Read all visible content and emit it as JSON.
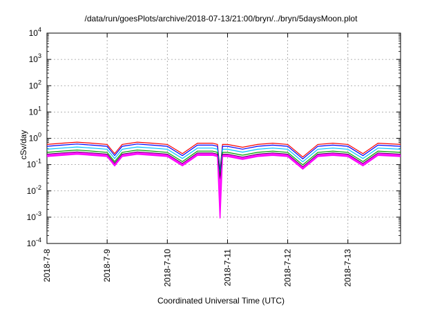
{
  "chart_data": {
    "type": "area",
    "title": "/data/run/goesPlots/archive/2018-07-13/21:00/bryn/../bryn/5daysMoon.plot",
    "xlabel": "Coordinated Universal Time (UTC)",
    "ylabel": "cSv/day",
    "x_ticks": [
      "2018-7-8",
      "2018-7-9",
      "2018-7-10",
      "2018-7-11",
      "2018-7-12",
      "2018-7-13"
    ],
    "x_range": [
      "2018-07-08T00:00",
      "2018-07-13T21:00"
    ],
    "y_scale": "log",
    "ylim": [
      0.0001,
      10000
    ],
    "y_ticks": [
      {
        "base": "10",
        "exp": "-4"
      },
      {
        "base": "10",
        "exp": "-3"
      },
      {
        "base": "10",
        "exp": "-2"
      },
      {
        "base": "10",
        "exp": "-1"
      },
      {
        "base": "10",
        "exp": "0"
      },
      {
        "base": "10",
        "exp": "1"
      },
      {
        "base": "10",
        "exp": "2"
      },
      {
        "base": "10",
        "exp": "3"
      },
      {
        "base": "10",
        "exp": "4"
      }
    ],
    "grid": true,
    "series_colors": [
      "#ff00ff",
      "#ff0000",
      "#0000ff",
      "#00c0ff",
      "#00a000",
      "#000000"
    ],
    "baseline": {
      "x": [
        "2018-07-08T00:00",
        "2018-07-08T06:00",
        "2018-07-08T12:00",
        "2018-07-08T18:00",
        "2018-07-09T00:00",
        "2018-07-09T03:00",
        "2018-07-09T06:00",
        "2018-07-09T12:00",
        "2018-07-09T18:00",
        "2018-07-10T00:00",
        "2018-07-10T06:00",
        "2018-07-10T12:00",
        "2018-07-10T18:00",
        "2018-07-10T20:00",
        "2018-07-10T21:00",
        "2018-07-10T22:00",
        "2018-07-11T00:00",
        "2018-07-11T06:00",
        "2018-07-11T12:00",
        "2018-07-11T18:00",
        "2018-07-12T00:00",
        "2018-07-12T06:00",
        "2018-07-12T12:00",
        "2018-07-12T18:00",
        "2018-07-13T00:00",
        "2018-07-13T06:00",
        "2018-07-13T12:00",
        "2018-07-13T21:00"
      ],
      "y": [
        0.45,
        0.5,
        0.55,
        0.5,
        0.45,
        0.2,
        0.45,
        0.55,
        0.5,
        0.45,
        0.2,
        0.5,
        0.5,
        0.45,
        0.05,
        0.45,
        0.45,
        0.35,
        0.45,
        0.5,
        0.45,
        0.15,
        0.45,
        0.5,
        0.45,
        0.2,
        0.5,
        0.45
      ]
    },
    "series_ratios": [
      0.45,
      1.3,
      1.1,
      0.85,
      0.65,
      0.55
    ],
    "magenta_min": 0.0009
  }
}
